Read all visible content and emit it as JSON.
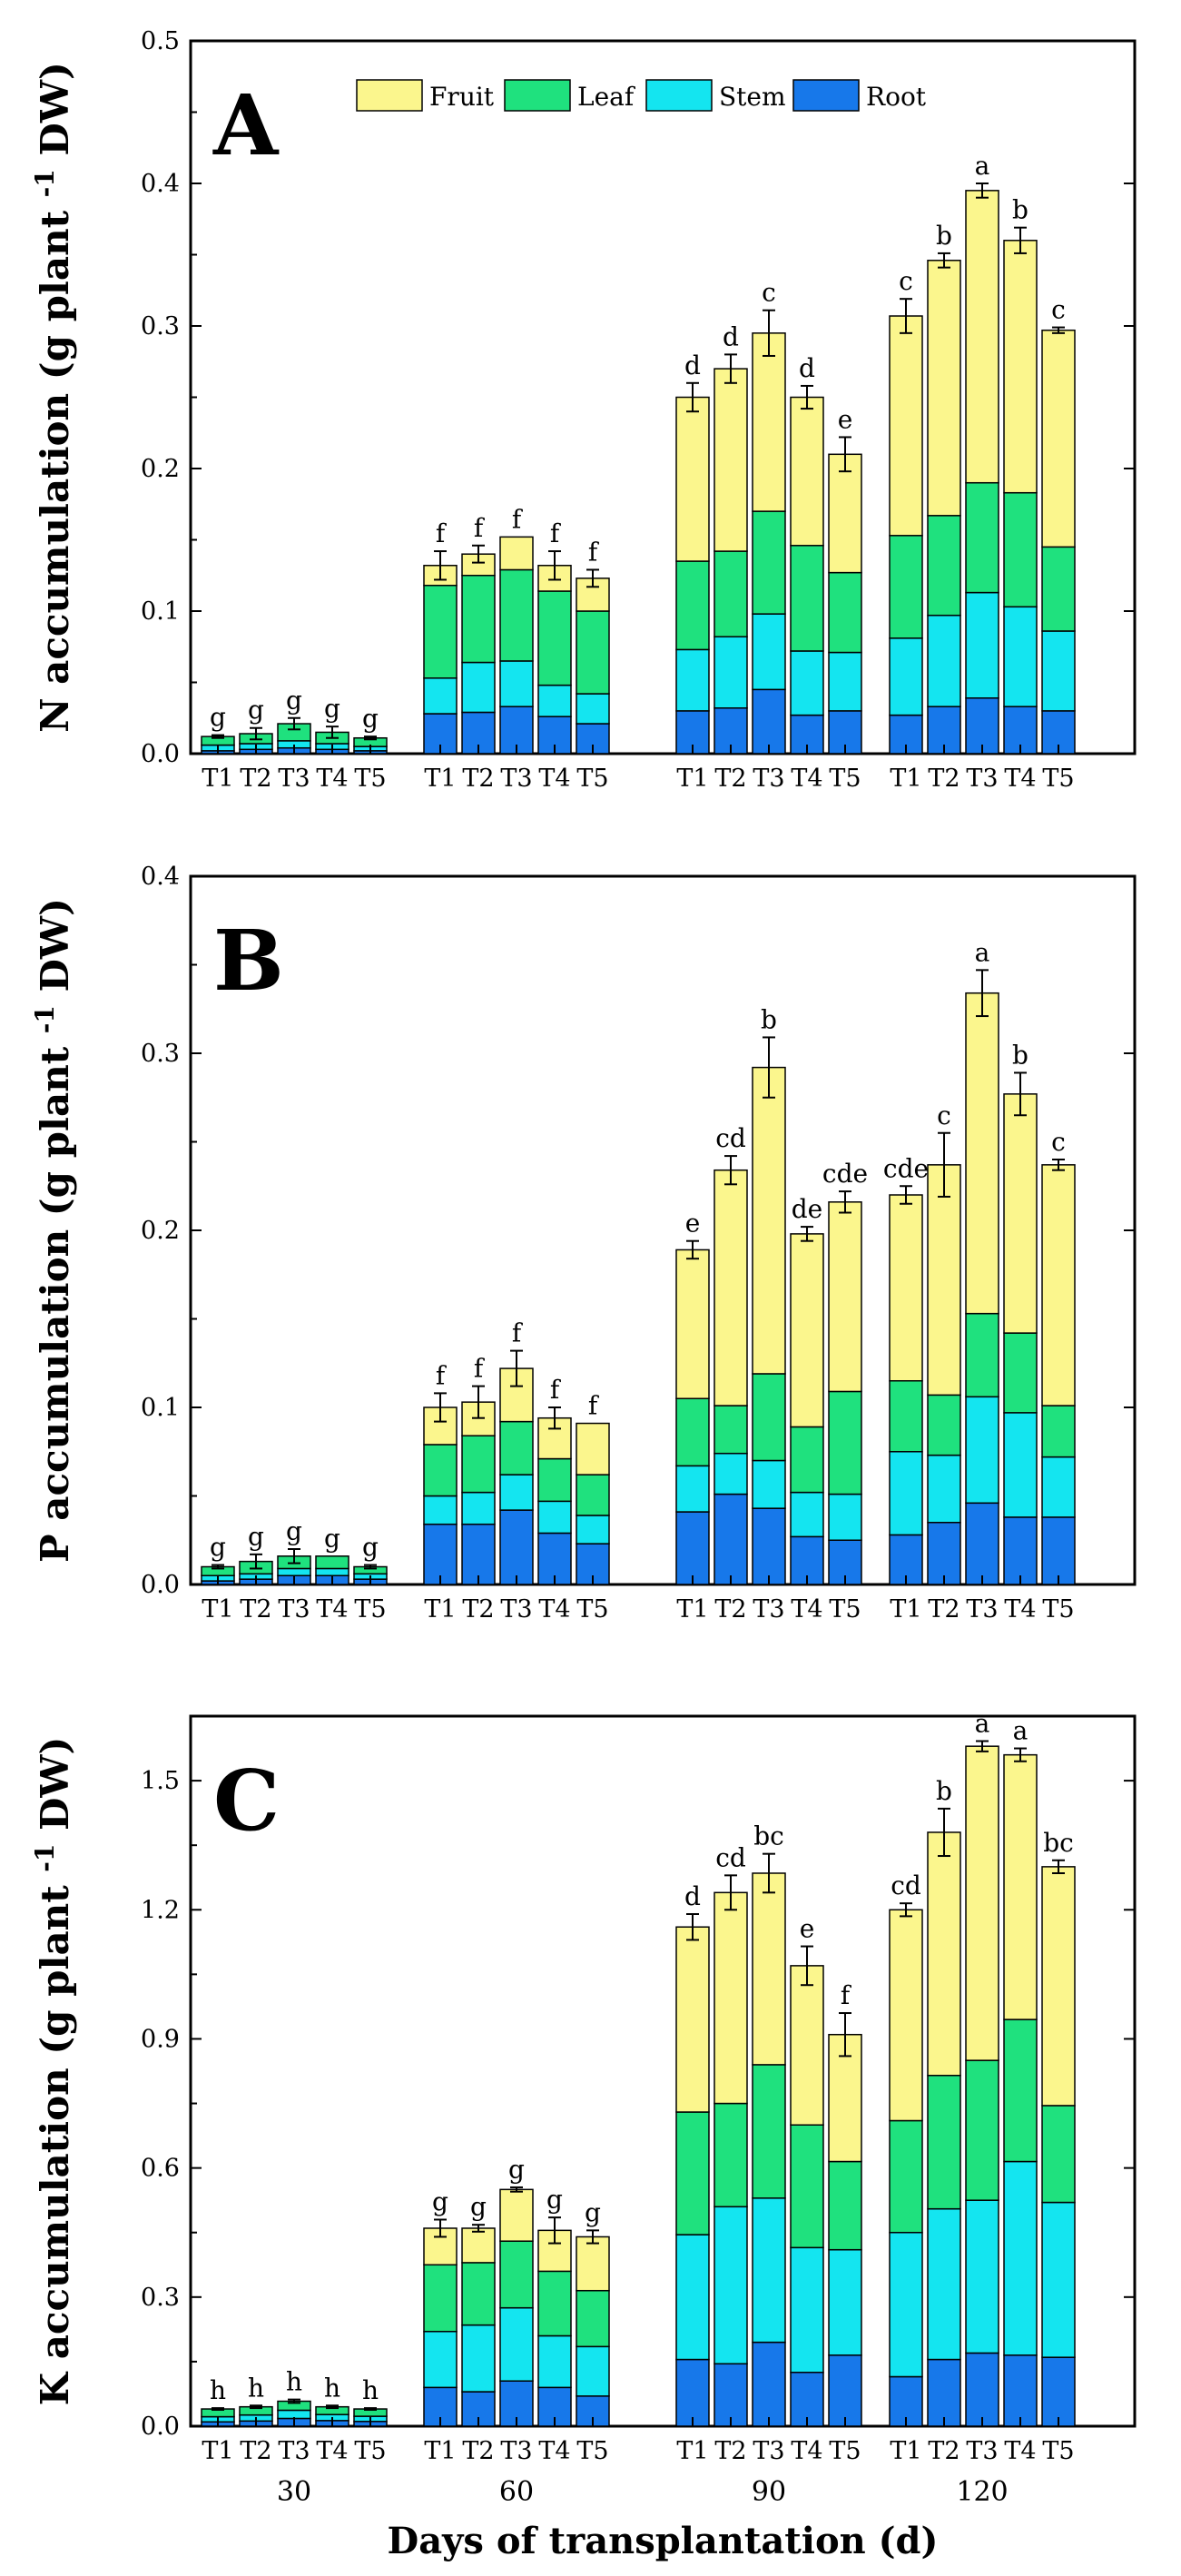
{
  "legend": [
    {
      "name": "Fruit",
      "color": "#fbf68d"
    },
    {
      "name": "Leaf",
      "color": "#1fe17e"
    },
    {
      "name": "Stem",
      "color": "#14e5f0"
    },
    {
      "name": "Root",
      "color": "#1778ea"
    }
  ],
  "x_axis_label": "Days of transplantation (d)",
  "chart_data": [
    {
      "type": "stacked_bar",
      "panel": "A",
      "ylabel": "N accumulation (g plant -1 DW)",
      "ylim": [
        0,
        0.5
      ],
      "yticks": [
        "0.0",
        "0.1",
        "0.2",
        "0.3",
        "0.4",
        "0.5"
      ],
      "groups": [
        "30",
        "60",
        "90",
        "120"
      ],
      "categories": [
        "T1",
        "T2",
        "T3",
        "T4",
        "T5"
      ],
      "bars": [
        {
          "day": "30",
          "treatment": "T1",
          "root": 0.002,
          "stem": 0.004,
          "leaf": 0.006,
          "fruit": 0.0,
          "total": 0.012,
          "err": 0.001,
          "sig": "g"
        },
        {
          "day": "30",
          "treatment": "T2",
          "root": 0.003,
          "stem": 0.004,
          "leaf": 0.007,
          "fruit": 0.0,
          "total": 0.014,
          "err": 0.004,
          "sig": "g"
        },
        {
          "day": "30",
          "treatment": "T3",
          "root": 0.004,
          "stem": 0.005,
          "leaf": 0.012,
          "fruit": 0.0,
          "total": 0.021,
          "err": 0.004,
          "sig": "g"
        },
        {
          "day": "30",
          "treatment": "T4",
          "root": 0.003,
          "stem": 0.004,
          "leaf": 0.008,
          "fruit": 0.0,
          "total": 0.015,
          "err": 0.004,
          "sig": "g"
        },
        {
          "day": "30",
          "treatment": "T5",
          "root": 0.002,
          "stem": 0.003,
          "leaf": 0.006,
          "fruit": 0.0,
          "total": 0.011,
          "err": 0.001,
          "sig": "g"
        },
        {
          "day": "60",
          "treatment": "T1",
          "root": 0.028,
          "stem": 0.025,
          "leaf": 0.065,
          "fruit": 0.014,
          "total": 0.132,
          "err": 0.01,
          "sig": "f"
        },
        {
          "day": "60",
          "treatment": "T2",
          "root": 0.029,
          "stem": 0.035,
          "leaf": 0.061,
          "fruit": 0.015,
          "total": 0.14,
          "err": 0.006,
          "sig": "f"
        },
        {
          "day": "60",
          "treatment": "T3",
          "root": 0.033,
          "stem": 0.032,
          "leaf": 0.064,
          "fruit": 0.023,
          "total": 0.152,
          "err": 0.0,
          "sig": "f"
        },
        {
          "day": "60",
          "treatment": "T4",
          "root": 0.026,
          "stem": 0.022,
          "leaf": 0.066,
          "fruit": 0.018,
          "total": 0.132,
          "err": 0.01,
          "sig": "f"
        },
        {
          "day": "60",
          "treatment": "T5",
          "root": 0.021,
          "stem": 0.021,
          "leaf": 0.058,
          "fruit": 0.023,
          "total": 0.123,
          "err": 0.006,
          "sig": "f"
        },
        {
          "day": "90",
          "treatment": "T1",
          "root": 0.03,
          "stem": 0.043,
          "leaf": 0.062,
          "fruit": 0.115,
          "total": 0.25,
          "err": 0.01,
          "sig": "d"
        },
        {
          "day": "90",
          "treatment": "T2",
          "root": 0.032,
          "stem": 0.05,
          "leaf": 0.06,
          "fruit": 0.128,
          "total": 0.27,
          "err": 0.01,
          "sig": "d"
        },
        {
          "day": "90",
          "treatment": "T3",
          "root": 0.045,
          "stem": 0.053,
          "leaf": 0.072,
          "fruit": 0.125,
          "total": 0.295,
          "err": 0.016,
          "sig": "c"
        },
        {
          "day": "90",
          "treatment": "T4",
          "root": 0.027,
          "stem": 0.045,
          "leaf": 0.074,
          "fruit": 0.104,
          "total": 0.25,
          "err": 0.008,
          "sig": "d"
        },
        {
          "day": "90",
          "treatment": "T5",
          "root": 0.03,
          "stem": 0.041,
          "leaf": 0.056,
          "fruit": 0.083,
          "total": 0.21,
          "err": 0.012,
          "sig": "e"
        },
        {
          "day": "120",
          "treatment": "T1",
          "root": 0.027,
          "stem": 0.054,
          "leaf": 0.072,
          "fruit": 0.154,
          "total": 0.307,
          "err": 0.012,
          "sig": "c"
        },
        {
          "day": "120",
          "treatment": "T2",
          "root": 0.033,
          "stem": 0.064,
          "leaf": 0.07,
          "fruit": 0.179,
          "total": 0.346,
          "err": 0.005,
          "sig": "b"
        },
        {
          "day": "120",
          "treatment": "T3",
          "root": 0.039,
          "stem": 0.074,
          "leaf": 0.077,
          "fruit": 0.205,
          "total": 0.395,
          "err": 0.005,
          "sig": "a"
        },
        {
          "day": "120",
          "treatment": "T4",
          "root": 0.033,
          "stem": 0.07,
          "leaf": 0.08,
          "fruit": 0.177,
          "total": 0.36,
          "err": 0.009,
          "sig": "b"
        },
        {
          "day": "120",
          "treatment": "T5",
          "root": 0.03,
          "stem": 0.056,
          "leaf": 0.059,
          "fruit": 0.152,
          "total": 0.297,
          "err": 0.002,
          "sig": "c"
        }
      ]
    },
    {
      "type": "stacked_bar",
      "panel": "B",
      "ylabel": "P accumulation (g plant -1 DW)",
      "ylim": [
        0,
        0.4
      ],
      "yticks": [
        "0.0",
        "0.1",
        "0.2",
        "0.3",
        "0.4"
      ],
      "groups": [
        "30",
        "60",
        "90",
        "120"
      ],
      "categories": [
        "T1",
        "T2",
        "T3",
        "T4",
        "T5"
      ],
      "bars": [
        {
          "day": "30",
          "treatment": "T1",
          "root": 0.002,
          "stem": 0.003,
          "leaf": 0.005,
          "fruit": 0.0,
          "total": 0.01,
          "err": 0.001,
          "sig": "g"
        },
        {
          "day": "30",
          "treatment": "T2",
          "root": 0.003,
          "stem": 0.003,
          "leaf": 0.007,
          "fruit": 0.0,
          "total": 0.013,
          "err": 0.004,
          "sig": "g"
        },
        {
          "day": "30",
          "treatment": "T3",
          "root": 0.005,
          "stem": 0.004,
          "leaf": 0.007,
          "fruit": 0.0,
          "total": 0.016,
          "err": 0.004,
          "sig": "g"
        },
        {
          "day": "30",
          "treatment": "T4",
          "root": 0.005,
          "stem": 0.004,
          "leaf": 0.007,
          "fruit": 0.0,
          "total": 0.016,
          "err": 0.0,
          "sig": "g"
        },
        {
          "day": "30",
          "treatment": "T5",
          "root": 0.003,
          "stem": 0.003,
          "leaf": 0.004,
          "fruit": 0.0,
          "total": 0.01,
          "err": 0.001,
          "sig": "g"
        },
        {
          "day": "60",
          "treatment": "T1",
          "root": 0.034,
          "stem": 0.016,
          "leaf": 0.029,
          "fruit": 0.021,
          "total": 0.1,
          "err": 0.008,
          "sig": "f"
        },
        {
          "day": "60",
          "treatment": "T2",
          "root": 0.034,
          "stem": 0.018,
          "leaf": 0.032,
          "fruit": 0.019,
          "total": 0.103,
          "err": 0.009,
          "sig": "f"
        },
        {
          "day": "60",
          "treatment": "T3",
          "root": 0.042,
          "stem": 0.02,
          "leaf": 0.03,
          "fruit": 0.03,
          "total": 0.122,
          "err": 0.01,
          "sig": "f"
        },
        {
          "day": "60",
          "treatment": "T4",
          "root": 0.029,
          "stem": 0.018,
          "leaf": 0.024,
          "fruit": 0.023,
          "total": 0.094,
          "err": 0.006,
          "sig": "f"
        },
        {
          "day": "60",
          "treatment": "T5",
          "root": 0.023,
          "stem": 0.016,
          "leaf": 0.023,
          "fruit": 0.029,
          "total": 0.091,
          "err": 0.0,
          "sig": "f"
        },
        {
          "day": "90",
          "treatment": "T1",
          "root": 0.041,
          "stem": 0.026,
          "leaf": 0.038,
          "fruit": 0.084,
          "total": 0.189,
          "err": 0.005,
          "sig": "e"
        },
        {
          "day": "90",
          "treatment": "T2",
          "root": 0.051,
          "stem": 0.023,
          "leaf": 0.027,
          "fruit": 0.133,
          "total": 0.234,
          "err": 0.008,
          "sig": "cd"
        },
        {
          "day": "90",
          "treatment": "T3",
          "root": 0.043,
          "stem": 0.027,
          "leaf": 0.049,
          "fruit": 0.173,
          "total": 0.292,
          "err": 0.017,
          "sig": "b"
        },
        {
          "day": "90",
          "treatment": "T4",
          "root": 0.027,
          "stem": 0.025,
          "leaf": 0.037,
          "fruit": 0.109,
          "total": 0.198,
          "err": 0.004,
          "sig": "de"
        },
        {
          "day": "90",
          "treatment": "T5",
          "root": 0.025,
          "stem": 0.026,
          "leaf": 0.058,
          "fruit": 0.107,
          "total": 0.216,
          "err": 0.006,
          "sig": "cde"
        },
        {
          "day": "120",
          "treatment": "T1",
          "root": 0.028,
          "stem": 0.047,
          "leaf": 0.04,
          "fruit": 0.105,
          "total": 0.22,
          "err": 0.005,
          "sig": "cde"
        },
        {
          "day": "120",
          "treatment": "T2",
          "root": 0.035,
          "stem": 0.038,
          "leaf": 0.034,
          "fruit": 0.13,
          "total": 0.237,
          "err": 0.018,
          "sig": "c"
        },
        {
          "day": "120",
          "treatment": "T3",
          "root": 0.046,
          "stem": 0.06,
          "leaf": 0.047,
          "fruit": 0.181,
          "total": 0.334,
          "err": 0.013,
          "sig": "a"
        },
        {
          "day": "120",
          "treatment": "T4",
          "root": 0.038,
          "stem": 0.059,
          "leaf": 0.045,
          "fruit": 0.135,
          "total": 0.277,
          "err": 0.012,
          "sig": "b"
        },
        {
          "day": "120",
          "treatment": "T5",
          "root": 0.038,
          "stem": 0.034,
          "leaf": 0.029,
          "fruit": 0.136,
          "total": 0.237,
          "err": 0.003,
          "sig": "c"
        }
      ]
    },
    {
      "type": "stacked_bar",
      "panel": "C",
      "ylabel": "K accumulation (g plant -1 DW)",
      "ylim": [
        0,
        1.65
      ],
      "yticks": [
        "0.0",
        "0.3",
        "0.6",
        "0.9",
        "1.2",
        "1.5"
      ],
      "groups": [
        "30",
        "60",
        "90",
        "120"
      ],
      "categories": [
        "T1",
        "T2",
        "T3",
        "T4",
        "T5"
      ],
      "bars": [
        {
          "day": "30",
          "treatment": "T1",
          "root": 0.01,
          "stem": 0.012,
          "leaf": 0.018,
          "fruit": 0.0,
          "total": 0.04,
          "err": 0.002,
          "sig": "h"
        },
        {
          "day": "30",
          "treatment": "T2",
          "root": 0.012,
          "stem": 0.014,
          "leaf": 0.019,
          "fruit": 0.0,
          "total": 0.045,
          "err": 0.003,
          "sig": "h"
        },
        {
          "day": "30",
          "treatment": "T3",
          "root": 0.018,
          "stem": 0.019,
          "leaf": 0.021,
          "fruit": 0.0,
          "total": 0.058,
          "err": 0.004,
          "sig": "h"
        },
        {
          "day": "30",
          "treatment": "T4",
          "root": 0.013,
          "stem": 0.014,
          "leaf": 0.018,
          "fruit": 0.0,
          "total": 0.045,
          "err": 0.003,
          "sig": "h"
        },
        {
          "day": "30",
          "treatment": "T5",
          "root": 0.011,
          "stem": 0.012,
          "leaf": 0.017,
          "fruit": 0.0,
          "total": 0.04,
          "err": 0.002,
          "sig": "h"
        },
        {
          "day": "60",
          "treatment": "T1",
          "root": 0.09,
          "stem": 0.13,
          "leaf": 0.155,
          "fruit": 0.085,
          "total": 0.46,
          "err": 0.02,
          "sig": "g"
        },
        {
          "day": "60",
          "treatment": "T2",
          "root": 0.08,
          "stem": 0.155,
          "leaf": 0.145,
          "fruit": 0.08,
          "total": 0.46,
          "err": 0.008,
          "sig": "g"
        },
        {
          "day": "60",
          "treatment": "T3",
          "root": 0.105,
          "stem": 0.17,
          "leaf": 0.155,
          "fruit": 0.12,
          "total": 0.55,
          "err": 0.005,
          "sig": "g"
        },
        {
          "day": "60",
          "treatment": "T4",
          "root": 0.09,
          "stem": 0.12,
          "leaf": 0.15,
          "fruit": 0.095,
          "total": 0.455,
          "err": 0.03,
          "sig": "g"
        },
        {
          "day": "60",
          "treatment": "T5",
          "root": 0.07,
          "stem": 0.115,
          "leaf": 0.13,
          "fruit": 0.125,
          "total": 0.44,
          "err": 0.015,
          "sig": "g"
        },
        {
          "day": "90",
          "treatment": "T1",
          "root": 0.155,
          "stem": 0.29,
          "leaf": 0.285,
          "fruit": 0.43,
          "total": 1.16,
          "err": 0.03,
          "sig": "d"
        },
        {
          "day": "90",
          "treatment": "T2",
          "root": 0.145,
          "stem": 0.365,
          "leaf": 0.24,
          "fruit": 0.49,
          "total": 1.24,
          "err": 0.04,
          "sig": "cd"
        },
        {
          "day": "90",
          "treatment": "T3",
          "root": 0.195,
          "stem": 0.335,
          "leaf": 0.31,
          "fruit": 0.445,
          "total": 1.285,
          "err": 0.045,
          "sig": "bc"
        },
        {
          "day": "90",
          "treatment": "T4",
          "root": 0.125,
          "stem": 0.29,
          "leaf": 0.285,
          "fruit": 0.37,
          "total": 1.07,
          "err": 0.045,
          "sig": "e"
        },
        {
          "day": "90",
          "treatment": "T5",
          "root": 0.165,
          "stem": 0.245,
          "leaf": 0.205,
          "fruit": 0.295,
          "total": 0.91,
          "err": 0.05,
          "sig": "f"
        },
        {
          "day": "120",
          "treatment": "T1",
          "root": 0.115,
          "stem": 0.335,
          "leaf": 0.26,
          "fruit": 0.49,
          "total": 1.2,
          "err": 0.015,
          "sig": "cd"
        },
        {
          "day": "120",
          "treatment": "T2",
          "root": 0.155,
          "stem": 0.35,
          "leaf": 0.31,
          "fruit": 0.565,
          "total": 1.38,
          "err": 0.055,
          "sig": "b"
        },
        {
          "day": "120",
          "treatment": "T3",
          "root": 0.17,
          "stem": 0.355,
          "leaf": 0.325,
          "fruit": 0.73,
          "total": 1.58,
          "err": 0.012,
          "sig": "a"
        },
        {
          "day": "120",
          "treatment": "T4",
          "root": 0.165,
          "stem": 0.45,
          "leaf": 0.33,
          "fruit": 0.615,
          "total": 1.56,
          "err": 0.015,
          "sig": "a"
        },
        {
          "day": "120",
          "treatment": "T5",
          "root": 0.16,
          "stem": 0.36,
          "leaf": 0.225,
          "fruit": 0.555,
          "total": 1.3,
          "err": 0.015,
          "sig": "bc"
        }
      ]
    }
  ]
}
